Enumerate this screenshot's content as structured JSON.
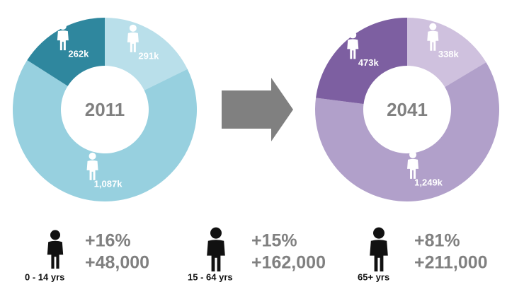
{
  "chart_data": [
    {
      "type": "donut",
      "title": "2011",
      "values": [
        291,
        1087,
        262
      ],
      "value_labels": [
        "291k",
        "1,087k",
        "262k"
      ],
      "colors": [
        "#b9dfea",
        "#97d0df",
        "#2f879e"
      ]
    },
    {
      "type": "donut",
      "title": "2041",
      "values": [
        338,
        1249,
        473
      ],
      "value_labels": [
        "338k",
        "1,249k",
        "473k"
      ],
      "colors": [
        "#cfc1de",
        "#b1a0ca",
        "#7d5fa1"
      ]
    }
  ],
  "summary": [
    {
      "label": "0 - 14 yrs",
      "percent": "+16%",
      "change": "+48,000"
    },
    {
      "label": "15 - 64 yrs",
      "percent": "+15%",
      "change": "+162,000"
    },
    {
      "label": "65+ yrs",
      "percent": "+81%",
      "change": "+211,000"
    }
  ]
}
